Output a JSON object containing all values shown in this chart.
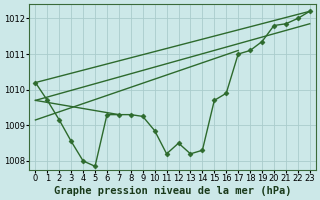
{
  "hours": [
    0,
    1,
    2,
    3,
    4,
    5,
    6,
    7,
    8,
    9,
    10,
    11,
    12,
    13,
    14,
    15,
    16,
    17,
    18,
    19,
    20,
    21,
    22,
    23
  ],
  "pressure": [
    1010.2,
    1009.7,
    1009.15,
    1008.55,
    1008.0,
    1007.85,
    1009.3,
    1009.3,
    1009.3,
    1009.25,
    1008.85,
    1008.2,
    1008.5,
    1008.2,
    1008.3,
    1009.7,
    1009.9,
    1011.0,
    1011.1,
    1011.35,
    1011.8,
    1011.85,
    1012.0,
    1012.2
  ],
  "fan_lines": [
    {
      "x0": 0,
      "y0": 1010.2,
      "x1": 23,
      "y1": 1012.2
    },
    {
      "x0": 0,
      "y0": 1009.7,
      "x1": 23,
      "y1": 1011.85
    },
    {
      "x0": 0,
      "y0": 1009.15,
      "x1": 17,
      "y1": 1011.1
    },
    {
      "x0": 0,
      "y0": 1009.7,
      "x1": 7,
      "y1": 1009.3
    }
  ],
  "line_color": "#2d6a2d",
  "marker": "D",
  "marker_size": 2.5,
  "bg_color": "#cce8e8",
  "grid_color": "#aacccc",
  "ylim": [
    1007.75,
    1012.4
  ],
  "xlim": [
    -0.5,
    23.5
  ],
  "yticks": [
    1008,
    1009,
    1010,
    1011,
    1012
  ],
  "xticks": [
    0,
    1,
    2,
    3,
    4,
    5,
    6,
    7,
    8,
    9,
    10,
    11,
    12,
    13,
    14,
    15,
    16,
    17,
    18,
    19,
    20,
    21,
    22,
    23
  ],
  "xlabel": "Graphe pression niveau de la mer (hPa)",
  "xlabel_fontsize": 7.5,
  "tick_fontsize": 6,
  "ytick_fontsize": 6,
  "line_width": 1.0
}
